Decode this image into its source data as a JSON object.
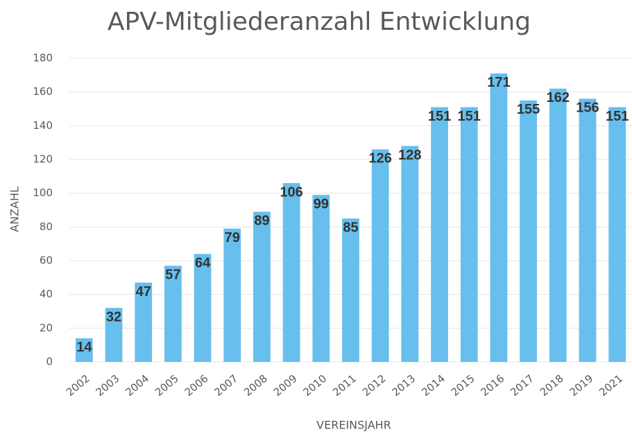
{
  "chart_data": {
    "type": "bar",
    "title": "APV-Mitgliederanzahl Entwicklung",
    "x_label": "VEREINSJAHR",
    "y_label": "ANZAHL",
    "categories": [
      "2002",
      "2003",
      "2004",
      "2005",
      "2006",
      "2007",
      "2008",
      "2009",
      "2010",
      "2011",
      "2012",
      "2013",
      "2014",
      "2015",
      "2016",
      "2017",
      "2018",
      "2019",
      "2021"
    ],
    "values": [
      14,
      32,
      47,
      57,
      64,
      79,
      89,
      106,
      99,
      85,
      126,
      128,
      151,
      151,
      171,
      155,
      162,
      156,
      151
    ],
    "color": "#66bfed",
    "ylim": [
      0,
      180
    ],
    "yticks": [
      0,
      20,
      40,
      60,
      80,
      100,
      120,
      140,
      160,
      180
    ],
    "grid": true
  }
}
